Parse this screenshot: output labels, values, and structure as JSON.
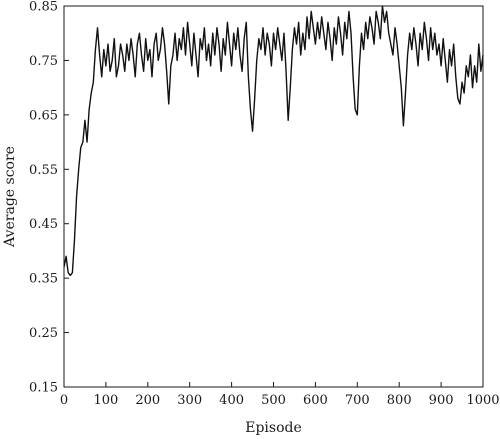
{
  "chart_data": {
    "type": "line",
    "title": "",
    "xlabel": "Episode",
    "ylabel": "Average score",
    "xlim": [
      0,
      1000
    ],
    "ylim": [
      0.15,
      0.85
    ],
    "xticks": [
      "0",
      "100",
      "200",
      "300",
      "400",
      "500",
      "600",
      "700",
      "800",
      "900",
      "1000"
    ],
    "yticks": [
      "0.15",
      "0.25",
      "0.35",
      "0.45",
      "0.55",
      "0.65",
      "0.75",
      "0.85"
    ],
    "grid": false,
    "legend": "none",
    "line_color": "#111111",
    "series": [
      {
        "x": [
          0,
          5,
          10,
          15,
          20,
          25,
          30,
          35,
          40,
          45,
          50,
          55,
          60,
          65,
          70,
          75,
          80,
          85,
          90,
          95,
          100,
          105,
          110,
          115,
          120,
          125,
          130,
          135,
          140,
          145,
          150,
          155,
          160,
          165,
          170,
          175,
          180,
          185,
          190,
          195,
          200,
          205,
          210,
          215,
          220,
          225,
          230,
          235,
          240,
          245,
          250,
          255,
          260,
          265,
          270,
          275,
          280,
          285,
          290,
          295,
          300,
          305,
          310,
          315,
          320,
          325,
          330,
          335,
          340,
          345,
          350,
          355,
          360,
          365,
          370,
          375,
          380,
          385,
          390,
          395,
          400,
          405,
          410,
          415,
          420,
          425,
          430,
          435,
          440,
          445,
          450,
          455,
          460,
          465,
          470,
          475,
          480,
          485,
          490,
          495,
          500,
          505,
          510,
          515,
          520,
          525,
          530,
          535,
          540,
          545,
          550,
          555,
          560,
          565,
          570,
          575,
          580,
          585,
          590,
          595,
          600,
          605,
          610,
          615,
          620,
          625,
          630,
          635,
          640,
          645,
          650,
          655,
          660,
          665,
          670,
          675,
          680,
          685,
          690,
          695,
          700,
          705,
          710,
          715,
          720,
          725,
          730,
          735,
          740,
          745,
          750,
          755,
          760,
          765,
          770,
          775,
          780,
          785,
          790,
          795,
          800,
          805,
          810,
          815,
          820,
          825,
          830,
          835,
          840,
          845,
          850,
          855,
          860,
          865,
          870,
          875,
          880,
          885,
          890,
          895,
          900,
          905,
          910,
          915,
          920,
          925,
          930,
          935,
          940,
          945,
          950,
          955,
          960,
          965,
          970,
          975,
          980,
          985,
          990,
          995,
          1000
        ],
        "values": [
          0.37,
          0.39,
          0.36,
          0.355,
          0.36,
          0.42,
          0.5,
          0.55,
          0.59,
          0.6,
          0.64,
          0.6,
          0.66,
          0.69,
          0.71,
          0.77,
          0.81,
          0.76,
          0.72,
          0.77,
          0.74,
          0.78,
          0.73,
          0.75,
          0.79,
          0.72,
          0.74,
          0.78,
          0.76,
          0.73,
          0.78,
          0.75,
          0.79,
          0.76,
          0.72,
          0.78,
          0.8,
          0.76,
          0.73,
          0.79,
          0.75,
          0.77,
          0.72,
          0.78,
          0.8,
          0.75,
          0.77,
          0.81,
          0.78,
          0.73,
          0.67,
          0.74,
          0.76,
          0.8,
          0.75,
          0.79,
          0.77,
          0.81,
          0.76,
          0.82,
          0.78,
          0.74,
          0.8,
          0.76,
          0.72,
          0.79,
          0.77,
          0.81,
          0.75,
          0.78,
          0.74,
          0.8,
          0.76,
          0.81,
          0.78,
          0.73,
          0.79,
          0.76,
          0.82,
          0.78,
          0.74,
          0.8,
          0.77,
          0.81,
          0.76,
          0.73,
          0.79,
          0.82,
          0.72,
          0.66,
          0.62,
          0.68,
          0.75,
          0.79,
          0.77,
          0.81,
          0.76,
          0.8,
          0.78,
          0.74,
          0.8,
          0.77,
          0.81,
          0.78,
          0.75,
          0.8,
          0.73,
          0.64,
          0.7,
          0.77,
          0.81,
          0.78,
          0.82,
          0.76,
          0.8,
          0.77,
          0.83,
          0.79,
          0.84,
          0.81,
          0.78,
          0.82,
          0.79,
          0.83,
          0.8,
          0.77,
          0.82,
          0.79,
          0.75,
          0.81,
          0.78,
          0.83,
          0.8,
          0.76,
          0.82,
          0.79,
          0.84,
          0.8,
          0.72,
          0.66,
          0.65,
          0.74,
          0.8,
          0.77,
          0.82,
          0.79,
          0.83,
          0.81,
          0.78,
          0.84,
          0.82,
          0.79,
          0.85,
          0.82,
          0.84,
          0.8,
          0.78,
          0.76,
          0.81,
          0.78,
          0.74,
          0.7,
          0.63,
          0.69,
          0.76,
          0.8,
          0.77,
          0.81,
          0.78,
          0.74,
          0.8,
          0.77,
          0.82,
          0.79,
          0.75,
          0.81,
          0.77,
          0.8,
          0.76,
          0.78,
          0.74,
          0.79,
          0.75,
          0.71,
          0.77,
          0.74,
          0.78,
          0.72,
          0.68,
          0.67,
          0.71,
          0.69,
          0.74,
          0.72,
          0.76,
          0.7,
          0.74,
          0.71,
          0.78,
          0.73,
          0.76
        ]
      }
    ]
  }
}
